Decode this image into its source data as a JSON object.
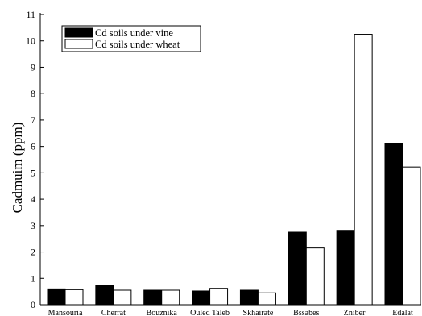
{
  "chart_data": {
    "type": "bar",
    "title": "",
    "xlabel": "",
    "ylabel": "Cadmuim (ppm)",
    "ylim": [
      0,
      11
    ],
    "yticks": [
      0,
      1,
      2,
      3,
      4,
      5,
      6,
      7,
      8,
      9,
      10,
      11
    ],
    "grid": false,
    "legend_position": "top-left",
    "categories": [
      "Mansouria",
      "Cherrat",
      "Bouznika",
      "Ouled Taleb",
      "Skhairate",
      "Bssabes",
      "Zniber",
      "Edalat"
    ],
    "series": [
      {
        "name": "Cd soils under vine",
        "color": "#000000",
        "values": [
          0.6,
          0.73,
          0.55,
          0.52,
          0.55,
          2.75,
          2.82,
          6.1
        ]
      },
      {
        "name": "Cd soils under wheat",
        "color": "#ffffff",
        "values": [
          0.57,
          0.55,
          0.55,
          0.62,
          0.45,
          2.15,
          10.25,
          5.22
        ]
      }
    ]
  }
}
